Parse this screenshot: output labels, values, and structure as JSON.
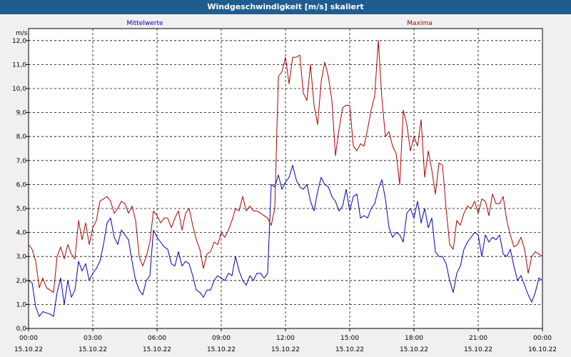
{
  "window": {
    "title": "Windgeschwindigkeit [m/s] skaliert"
  },
  "chart_data": {
    "type": "line",
    "title": "Windgeschwindigkeit [m/s] skaliert",
    "ylabel": "m/s",
    "ylim": [
      0,
      12.5
    ],
    "yticks": [
      "0,0",
      "1,0",
      "2,0",
      "3,0",
      "4,0",
      "5,0",
      "6,0",
      "7,0",
      "8,0",
      "9,0",
      "10,0",
      "11,0",
      "12,0"
    ],
    "xlim_hours": [
      0,
      24
    ],
    "xticks": [
      {
        "time": "00:00",
        "date": "15.10.22"
      },
      {
        "time": "03:00",
        "date": "15.10.22"
      },
      {
        "time": "06:00",
        "date": "15.10.22"
      },
      {
        "time": "09:00",
        "date": "15.10.22"
      },
      {
        "time": "12:00",
        "date": "15.10.22"
      },
      {
        "time": "15:00",
        "date": "15.10.22"
      },
      {
        "time": "18:00",
        "date": "15.10.22"
      },
      {
        "time": "21:00",
        "date": "15.10.22"
      },
      {
        "time": "00:00",
        "date": "16.10.22"
      }
    ],
    "grid": true,
    "series": [
      {
        "name": "Mittelwerte",
        "color": "#0000c0",
        "hours": [
          0.0,
          0.167,
          0.333,
          0.5,
          0.667,
          0.833,
          1.0,
          1.167,
          1.333,
          1.5,
          1.667,
          1.833,
          2.0,
          2.167,
          2.333,
          2.5,
          2.667,
          2.833,
          3.0,
          3.167,
          3.333,
          3.5,
          3.667,
          3.833,
          4.0,
          4.167,
          4.333,
          4.5,
          4.667,
          4.833,
          5.0,
          5.167,
          5.333,
          5.5,
          5.667,
          5.833,
          6.0,
          6.167,
          6.333,
          6.5,
          6.667,
          6.833,
          7.0,
          7.167,
          7.333,
          7.5,
          7.667,
          7.833,
          8.0,
          8.167,
          8.333,
          8.5,
          8.667,
          8.833,
          9.0,
          9.167,
          9.333,
          9.5,
          9.667,
          9.833,
          10.0,
          10.167,
          10.333,
          10.5,
          10.667,
          10.833,
          11.0,
          11.167,
          11.333,
          11.5,
          11.667,
          11.833,
          12.0,
          12.167,
          12.333,
          12.5,
          12.667,
          12.833,
          13.0,
          13.167,
          13.333,
          13.5,
          13.667,
          13.833,
          14.0,
          14.167,
          14.333,
          14.5,
          14.667,
          14.833,
          15.0,
          15.167,
          15.333,
          15.5,
          15.667,
          15.833,
          16.0,
          16.167,
          16.333,
          16.5,
          16.667,
          16.833,
          17.0,
          17.167,
          17.333,
          17.5,
          17.667,
          17.833,
          18.0,
          18.167,
          18.333,
          18.5,
          18.667,
          18.833,
          19.0,
          19.167,
          19.333,
          19.5,
          19.667,
          19.833,
          20.0,
          20.167,
          20.333,
          20.5,
          20.667,
          20.833,
          21.0,
          21.167,
          21.333,
          21.5,
          21.667,
          21.833,
          22.0,
          22.167,
          22.333,
          22.5,
          22.667,
          22.833,
          23.0,
          23.167,
          23.333,
          23.5,
          23.667,
          23.833,
          24.0
        ],
        "values": [
          2.0,
          1.9,
          0.9,
          0.5,
          0.7,
          0.65,
          0.6,
          0.5,
          1.5,
          2.1,
          1.0,
          2.0,
          1.3,
          1.6,
          2.8,
          2.4,
          2.7,
          2.0,
          2.3,
          2.5,
          2.8,
          3.5,
          4.4,
          4.6,
          3.8,
          3.5,
          4.1,
          3.9,
          3.7,
          2.8,
          2.0,
          1.6,
          1.4,
          2.0,
          2.2,
          4.1,
          3.8,
          3.6,
          3.4,
          3.3,
          2.7,
          2.6,
          3.2,
          2.6,
          2.8,
          2.7,
          2.2,
          1.6,
          1.5,
          1.3,
          1.6,
          1.6,
          2.0,
          2.2,
          2.1,
          2.0,
          2.3,
          2.2,
          3.0,
          2.4,
          2.0,
          1.8,
          2.2,
          2.0,
          2.3,
          2.3,
          2.1,
          2.3,
          6.0,
          5.9,
          6.4,
          5.8,
          6.1,
          6.3,
          6.8,
          6.2,
          5.9,
          5.8,
          6.0,
          5.3,
          4.9,
          5.7,
          6.3,
          6.0,
          5.9,
          5.5,
          5.3,
          4.9,
          5.1,
          5.8,
          4.9,
          5.5,
          5.6,
          4.6,
          4.7,
          4.6,
          5.0,
          5.2,
          5.8,
          6.2,
          5.4,
          4.2,
          3.8,
          4.0,
          3.9,
          3.6,
          4.8,
          5.0,
          4.6,
          5.3,
          4.4,
          5.0,
          4.2,
          4.6,
          3.2,
          3.0,
          3.0,
          2.7,
          2.0,
          1.5,
          2.3,
          2.6,
          3.3,
          3.6,
          3.8,
          4.0,
          3.9,
          3.0,
          3.9,
          3.6,
          3.8,
          3.7,
          3.9,
          3.1,
          3.0,
          3.3,
          2.6,
          2.0,
          2.2,
          1.8,
          1.4,
          1.1,
          1.5,
          2.1,
          2.0
        ]
      },
      {
        "name": "Maxima",
        "color": "#b00000",
        "hours": [
          0.0,
          0.167,
          0.333,
          0.5,
          0.667,
          0.833,
          1.0,
          1.167,
          1.333,
          1.5,
          1.667,
          1.833,
          2.0,
          2.167,
          2.333,
          2.5,
          2.667,
          2.833,
          3.0,
          3.167,
          3.333,
          3.5,
          3.667,
          3.833,
          4.0,
          4.167,
          4.333,
          4.5,
          4.667,
          4.833,
          5.0,
          5.167,
          5.333,
          5.5,
          5.667,
          5.833,
          6.0,
          6.167,
          6.333,
          6.5,
          6.667,
          6.833,
          7.0,
          7.167,
          7.333,
          7.5,
          7.667,
          7.833,
          8.0,
          8.167,
          8.333,
          8.5,
          8.667,
          8.833,
          9.0,
          9.167,
          9.333,
          9.5,
          9.667,
          9.833,
          10.0,
          10.167,
          10.333,
          10.5,
          10.667,
          10.833,
          11.0,
          11.167,
          11.333,
          11.5,
          11.667,
          11.833,
          12.0,
          12.167,
          12.333,
          12.5,
          12.667,
          12.833,
          13.0,
          13.167,
          13.333,
          13.5,
          13.667,
          13.833,
          14.0,
          14.167,
          14.333,
          14.5,
          14.667,
          14.833,
          15.0,
          15.167,
          15.333,
          15.5,
          15.667,
          15.833,
          16.0,
          16.167,
          16.333,
          16.5,
          16.667,
          16.833,
          17.0,
          17.167,
          17.333,
          17.5,
          17.667,
          17.833,
          18.0,
          18.167,
          18.333,
          18.5,
          18.667,
          18.833,
          19.0,
          19.167,
          19.333,
          19.5,
          19.667,
          19.833,
          20.0,
          20.167,
          20.333,
          20.5,
          20.667,
          20.833,
          21.0,
          21.167,
          21.333,
          21.5,
          21.667,
          21.833,
          22.0,
          22.167,
          22.333,
          22.5,
          22.667,
          22.833,
          23.0,
          23.167,
          23.333,
          23.5,
          23.667,
          23.833,
          24.0
        ],
        "values": [
          3.5,
          3.3,
          2.8,
          1.7,
          2.1,
          1.7,
          1.6,
          1.5,
          3.0,
          3.4,
          2.9,
          3.5,
          3.1,
          2.9,
          4.5,
          3.7,
          4.4,
          3.5,
          4.2,
          4.5,
          5.3,
          5.4,
          5.5,
          5.3,
          4.8,
          5.0,
          5.3,
          5.2,
          4.8,
          5.1,
          4.5,
          3.0,
          2.6,
          3.0,
          3.6,
          4.9,
          4.7,
          4.4,
          4.6,
          4.6,
          4.2,
          4.6,
          4.9,
          4.1,
          4.8,
          5.0,
          4.3,
          3.7,
          3.3,
          2.5,
          3.1,
          3.2,
          3.6,
          3.5,
          4.0,
          3.8,
          4.1,
          4.5,
          5.0,
          4.9,
          5.5,
          4.9,
          5.1,
          4.9,
          4.9,
          4.8,
          4.7,
          4.6,
          4.3,
          5.0,
          10.5,
          10.7,
          11.3,
          10.2,
          11.3,
          11.3,
          11.4,
          9.8,
          9.5,
          11.0,
          9.3,
          8.5,
          10.3,
          11.1,
          10.5,
          9.5,
          7.2,
          8.3,
          9.2,
          9.3,
          9.3,
          7.6,
          7.4,
          7.7,
          7.6,
          8.3,
          9.1,
          9.7,
          12.0,
          9.6,
          8.0,
          8.2,
          7.6,
          7.3,
          6.0,
          9.1,
          8.5,
          7.4,
          8.0,
          7.6,
          8.7,
          6.3,
          7.4,
          6.6,
          5.6,
          6.9,
          6.8,
          5.0,
          3.5,
          3.3,
          4.5,
          4.3,
          4.8,
          5.1,
          5.0,
          5.3,
          4.8,
          5.4,
          5.3,
          4.7,
          5.6,
          5.2,
          5.2,
          5.5,
          4.5,
          3.9,
          3.4,
          3.5,
          3.8,
          3.3,
          2.3,
          3.0,
          3.2,
          3.1,
          3.0
        ]
      }
    ]
  }
}
